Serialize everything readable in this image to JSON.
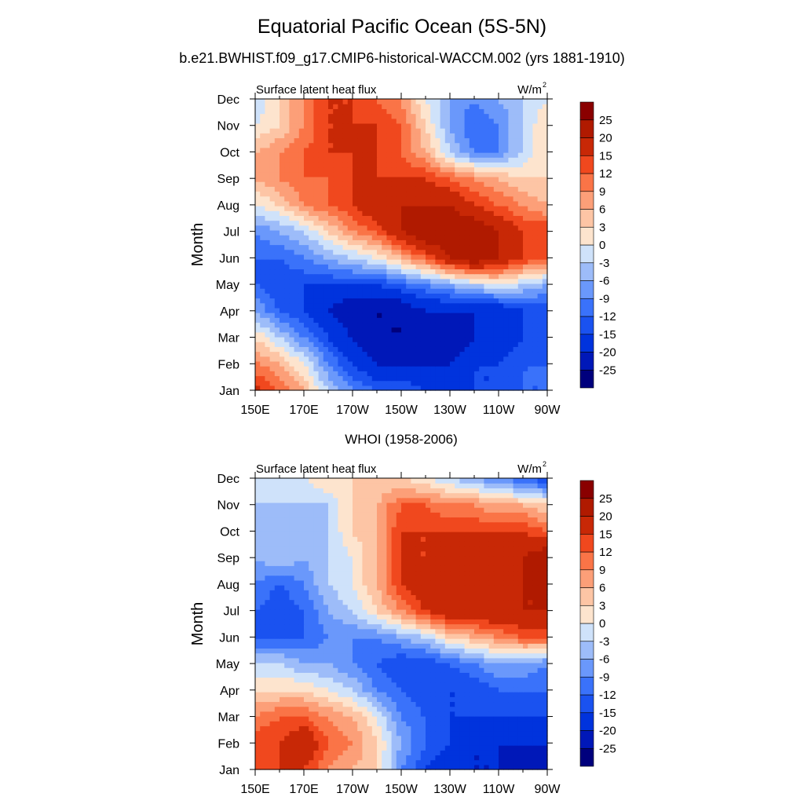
{
  "title": "Equatorial Pacific Ocean (5S-5N)",
  "subtitle": "b.e21.BWHIST.f09_g17.CMIP6-historical-WACCM.002 (yrs 1881-1910)",
  "colorbar": {
    "levels": [
      -25,
      -20,
      -15,
      -12,
      -9,
      -6,
      -3,
      0,
      3,
      6,
      9,
      12,
      15,
      20,
      25
    ],
    "level_labels": [
      "-25",
      "-20",
      "-15",
      "-12",
      "-9",
      "-6",
      "-3",
      "0",
      "3",
      "6",
      "9",
      "12",
      "15",
      "20",
      "25"
    ],
    "colors": [
      "#00007d",
      "#0018b8",
      "#0033dd",
      "#1a52f0",
      "#3a72fa",
      "#6a98fb",
      "#9dbcf9",
      "#cfe2fa",
      "#fde4ce",
      "#fdc5a5",
      "#fc9f78",
      "#fa7447",
      "#f0481e",
      "#c82806",
      "#b01a00",
      "#8a0000"
    ]
  },
  "chart_data": [
    {
      "type": "heatmap",
      "title": "",
      "left_label": "Surface latent heat flux",
      "units": "W/m",
      "units_superscript": "2",
      "ylabel": "Month",
      "x": [
        "150E",
        "160E",
        "170E",
        "180",
        "170W",
        "160W",
        "150W",
        "140W",
        "130W",
        "120W",
        "110W",
        "100W",
        "90W"
      ],
      "x_tick_labels": [
        "150E",
        "170E",
        "170W",
        "150W",
        "130W",
        "110W",
        "90W"
      ],
      "y": [
        "Jan",
        "Feb",
        "Mar",
        "Apr",
        "May",
        "Jun",
        "Jul",
        "Aug",
        "Sep",
        "Oct",
        "Nov",
        "Dec"
      ],
      "z": [
        [
          16,
          12,
          6,
          -3,
          -9,
          -12,
          -12,
          -15,
          -15,
          -15,
          -15,
          -12,
          -12
        ],
        [
          10,
          6,
          0,
          -9,
          -15,
          -20,
          -20,
          -20,
          -20,
          -15,
          -15,
          -12,
          -12
        ],
        [
          3,
          -3,
          -9,
          -15,
          -20,
          -25,
          -25,
          -25,
          -25,
          -20,
          -20,
          -15,
          -12
        ],
        [
          -6,
          -12,
          -15,
          -20,
          -25,
          -25,
          -25,
          -20,
          -20,
          -20,
          -20,
          -15,
          -15
        ],
        [
          -12,
          -15,
          -15,
          -15,
          -15,
          -15,
          -12,
          -9,
          -6,
          -3,
          0,
          -3,
          -6
        ],
        [
          -12,
          -12,
          -9,
          -6,
          -3,
          0,
          6,
          12,
          20,
          25,
          20,
          15,
          12
        ],
        [
          -9,
          -6,
          -3,
          3,
          9,
          12,
          20,
          25,
          25,
          25,
          20,
          15,
          15
        ],
        [
          0,
          3,
          9,
          12,
          15,
          20,
          20,
          20,
          20,
          15,
          12,
          9,
          6
        ],
        [
          6,
          9,
          12,
          12,
          15,
          15,
          15,
          15,
          12,
          9,
          6,
          3,
          3
        ],
        [
          6,
          9,
          12,
          15,
          15,
          15,
          12,
          6,
          -3,
          -9,
          -9,
          -3,
          3
        ],
        [
          0,
          3,
          9,
          15,
          15,
          15,
          12,
          3,
          -6,
          -12,
          -9,
          -3,
          3
        ],
        [
          -3,
          3,
          9,
          15,
          15,
          12,
          9,
          0,
          -6,
          -9,
          -6,
          -3,
          0
        ]
      ]
    },
    {
      "type": "heatmap",
      "title": "WHOI (1958-2006)",
      "left_label": "Surface latent heat flux",
      "units": "W/m",
      "units_superscript": "2",
      "ylabel": "Month",
      "x": [
        "150E",
        "160E",
        "170E",
        "180",
        "170W",
        "160W",
        "150W",
        "140W",
        "130W",
        "120W",
        "110W",
        "100W",
        "90W"
      ],
      "x_tick_labels": [
        "150E",
        "170E",
        "170W",
        "150W",
        "130W",
        "110W",
        "90W"
      ],
      "y": [
        "Jan",
        "Feb",
        "Mar",
        "Apr",
        "May",
        "Jun",
        "Jul",
        "Aug",
        "Sep",
        "Oct",
        "Nov",
        "Dec"
      ],
      "z": [
        [
          12,
          15,
          15,
          9,
          6,
          3,
          -9,
          -15,
          -20,
          -20,
          -20,
          -25,
          -25
        ],
        [
          15,
          15,
          20,
          12,
          9,
          3,
          -6,
          -12,
          -15,
          -20,
          -20,
          -20,
          -20
        ],
        [
          9,
          12,
          12,
          9,
          6,
          0,
          -9,
          -12,
          -15,
          -15,
          -15,
          -15,
          -15
        ],
        [
          3,
          3,
          3,
          0,
          -3,
          -9,
          -12,
          -15,
          -15,
          -15,
          -12,
          -12,
          -12
        ],
        [
          -3,
          -3,
          -6,
          -6,
          -9,
          -12,
          -15,
          -15,
          -12,
          -9,
          -6,
          -6,
          -9
        ],
        [
          -12,
          -12,
          -12,
          -9,
          -9,
          -9,
          -6,
          -3,
          3,
          6,
          9,
          12,
          12
        ],
        [
          -12,
          -15,
          -12,
          -6,
          -3,
          3,
          9,
          15,
          20,
          20,
          20,
          20,
          20
        ],
        [
          -9,
          -12,
          -9,
          -3,
          0,
          6,
          15,
          20,
          20,
          15,
          15,
          20,
          20
        ],
        [
          -6,
          -3,
          -6,
          -3,
          0,
          6,
          15,
          15,
          20,
          15,
          20,
          20,
          25
        ],
        [
          -6,
          -3,
          -6,
          -3,
          3,
          6,
          15,
          15,
          15,
          15,
          15,
          15,
          12
        ],
        [
          -3,
          -3,
          -3,
          -3,
          3,
          6,
          12,
          12,
          9,
          9,
          6,
          6,
          3
        ],
        [
          0,
          0,
          0,
          3,
          3,
          3,
          3,
          0,
          -3,
          -6,
          -9,
          -12,
          -15
        ]
      ]
    }
  ]
}
